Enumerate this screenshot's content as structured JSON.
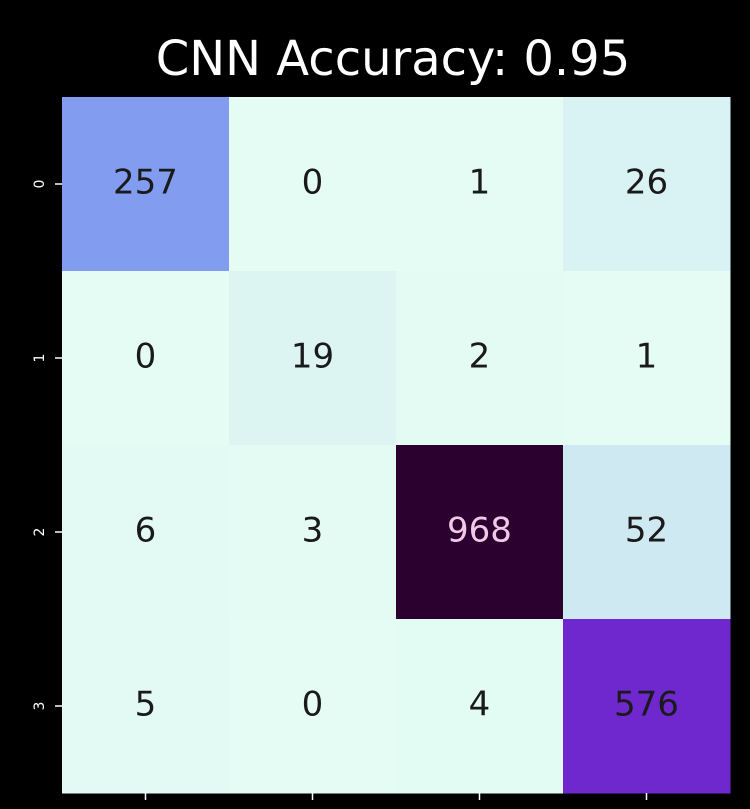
{
  "chart_data": {
    "type": "heatmap",
    "title": "CNN Accuracy: 0.95",
    "y_categories": [
      "0",
      "1",
      "2",
      "3"
    ],
    "x_categories": [
      null,
      null,
      null,
      null
    ],
    "values": [
      [
        257,
        0,
        1,
        26
      ],
      [
        0,
        19,
        2,
        1
      ],
      [
        6,
        3,
        968,
        52
      ],
      [
        5,
        0,
        4,
        576
      ]
    ],
    "colors": [
      "#e4fcf3",
      "#82a2f0",
      "#7a40e0",
      "#5a00b0",
      "#2b0130"
    ]
  }
}
